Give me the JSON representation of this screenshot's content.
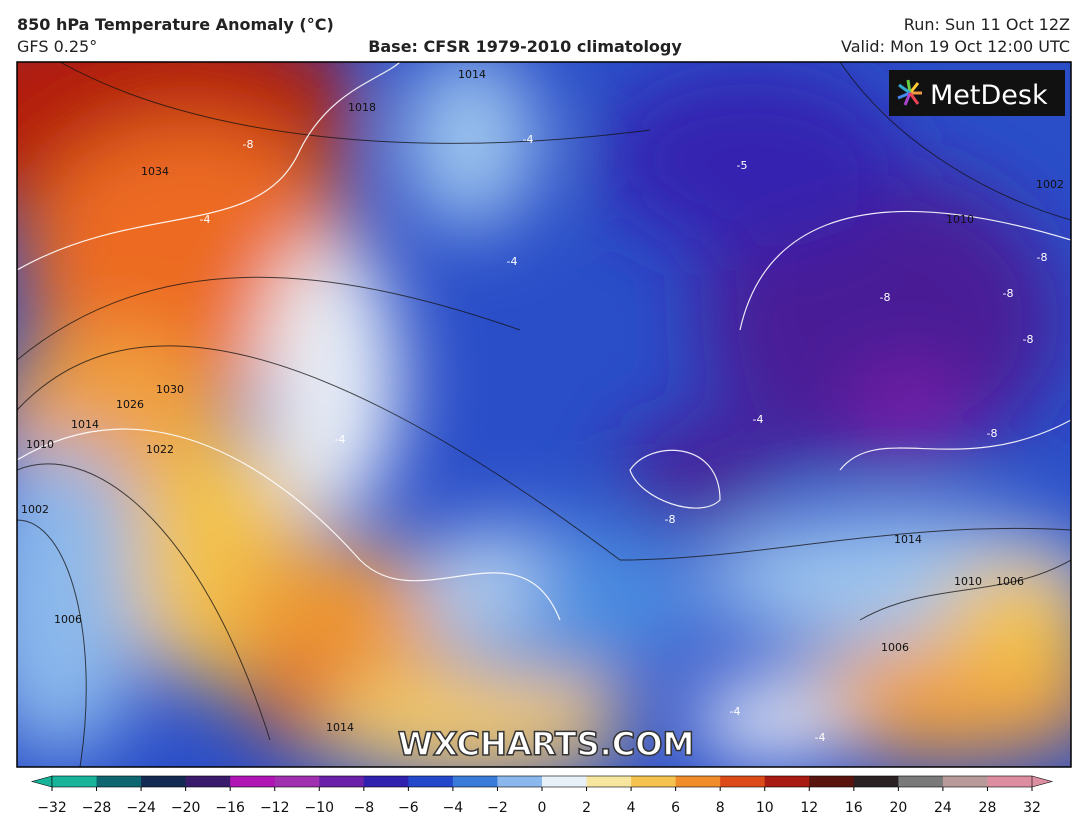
{
  "header": {
    "title": "850 hPa Temperature Anomaly (°C)",
    "model": "GFS 0.25°",
    "base": "Base: CFSR 1979-2010 climatology",
    "run": "Run: Sun 11 Oct 12Z",
    "valid": "Valid: Mon 19 Oct 12:00 UTC"
  },
  "logo": "MetDesk",
  "watermark": "WXCHARTS.COM",
  "map": {
    "contour_labels": [
      "1014",
      "1018",
      "1034",
      "1030",
      "1026",
      "1014",
      "1022",
      "1010",
      "1002",
      "1006",
      "1014",
      "1010",
      "1006",
      "1006",
      "1014",
      "1002",
      "1010",
      "-8",
      "-4",
      "-4",
      "-4",
      "-5",
      "-8",
      "-8",
      "-8",
      "-8",
      "-8",
      "-4",
      "-4",
      "-8",
      "-4",
      "-4"
    ]
  },
  "colorbar": {
    "ticks": [
      "−32",
      "−28",
      "−24",
      "−20",
      "−16",
      "−12",
      "−10",
      "−8",
      "−6",
      "−4",
      "−2",
      "0",
      "2",
      "4",
      "6",
      "8",
      "10",
      "12",
      "16",
      "20",
      "24",
      "28",
      "32"
    ],
    "colors": [
      "#18b49a",
      "#0d6670",
      "#142a52",
      "#3a1a6a",
      "#b014b4",
      "#a030b0",
      "#6a20a8",
      "#3020b0",
      "#2448cc",
      "#3a7ad8",
      "#8ab8ec",
      "#e8f0f8",
      "#f6e6a0",
      "#f4c24e",
      "#f08c2c",
      "#dc4a18",
      "#a81a12",
      "#5a1410",
      "#2a2222",
      "#7a7a7a",
      "#b89a9a",
      "#dc8ea0"
    ]
  }
}
